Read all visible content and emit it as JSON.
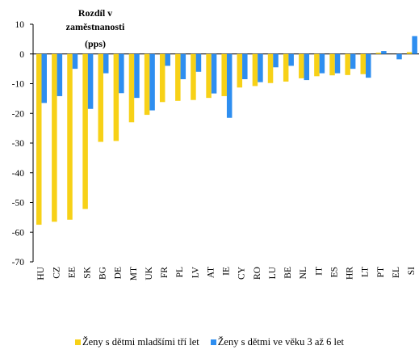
{
  "chart_data": {
    "type": "bar",
    "title_lines": [
      "Rozdíl v",
      "zaměstnanosti",
      "(pps)"
    ],
    "categories": [
      "HU",
      "CZ",
      "EE",
      "SK",
      "BG",
      "DE",
      "MT",
      "UK",
      "FR",
      "PL",
      "LV",
      "AT",
      "IE",
      "CY",
      "RO",
      "LU",
      "BE",
      "NL",
      "IT",
      "ES",
      "HR",
      "LT",
      "PT",
      "EL",
      "SI"
    ],
    "series": [
      {
        "name": "Ženy s dětmi mladšími tří let",
        "color": "#f7d117",
        "values": [
          -57.5,
          -56.5,
          -55.8,
          -52.2,
          -29.6,
          -29.3,
          -23.0,
          -20.5,
          -16.2,
          -15.8,
          -15.5,
          -14.8,
          -14.2,
          -11.3,
          -10.8,
          -9.8,
          -9.3,
          -8.2,
          -7.5,
          -7.2,
          -7.1,
          -6.8,
          0.4,
          0.0,
          0.6
        ]
      },
      {
        "name": "Ženy s dětmi ve věku 3 až 6 let",
        "color": "#2e8ef0",
        "values": [
          -16.5,
          -14.2,
          -5.0,
          -18.5,
          -6.5,
          -13.2,
          -14.8,
          -19.0,
          -4.0,
          -8.5,
          -6.0,
          -13.3,
          -21.5,
          -8.5,
          -9.5,
          -4.5,
          -4.0,
          -8.8,
          -6.5,
          -6.5,
          -5.0,
          -8.0,
          1.0,
          -1.8,
          6.0
        ]
      }
    ],
    "ylim": [
      -70,
      10
    ],
    "yticks": [
      10,
      0,
      -10,
      -20,
      -30,
      -40,
      -50,
      -60,
      -70
    ],
    "grid": false,
    "legend_position": "bottom"
  }
}
